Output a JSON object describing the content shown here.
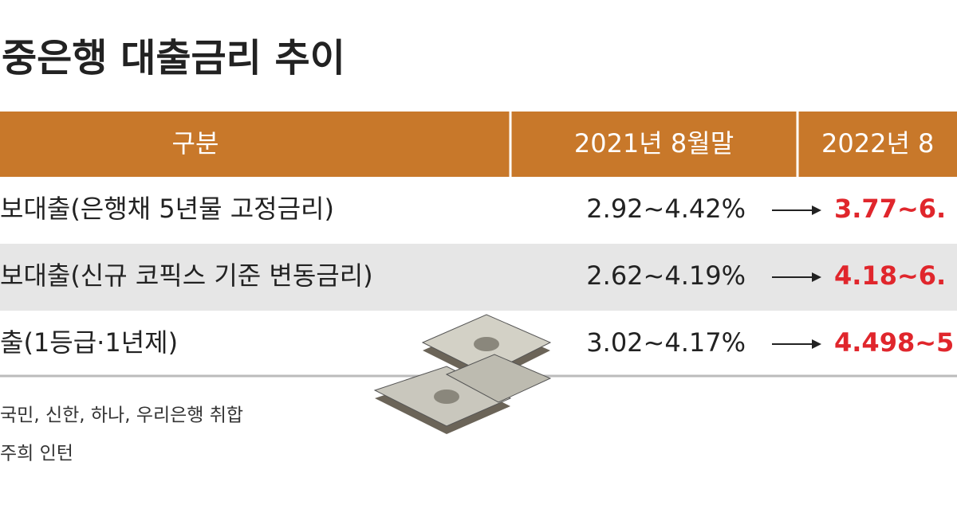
{
  "header": {
    "title": "중은행 대출금리 추이"
  },
  "table": {
    "columns": [
      "구분",
      "2021년 8월말",
      "2022년 8"
    ],
    "rows": [
      [
        "보대출(은행채 5년물 고정금리)",
        "2.92~4.42%",
        "3.77~6."
      ],
      [
        "보대출(신규 코픽스 기준 변동금리)",
        "2.62~4.19%",
        "4.18~6."
      ],
      [
        "출(1등급·1년제)",
        "3.02~4.17%",
        "4.498~5"
      ]
    ]
  },
  "footnotes": [
    "국민, 신한, 하나, 우리은행 취합",
    "주희 인턴"
  ]
}
